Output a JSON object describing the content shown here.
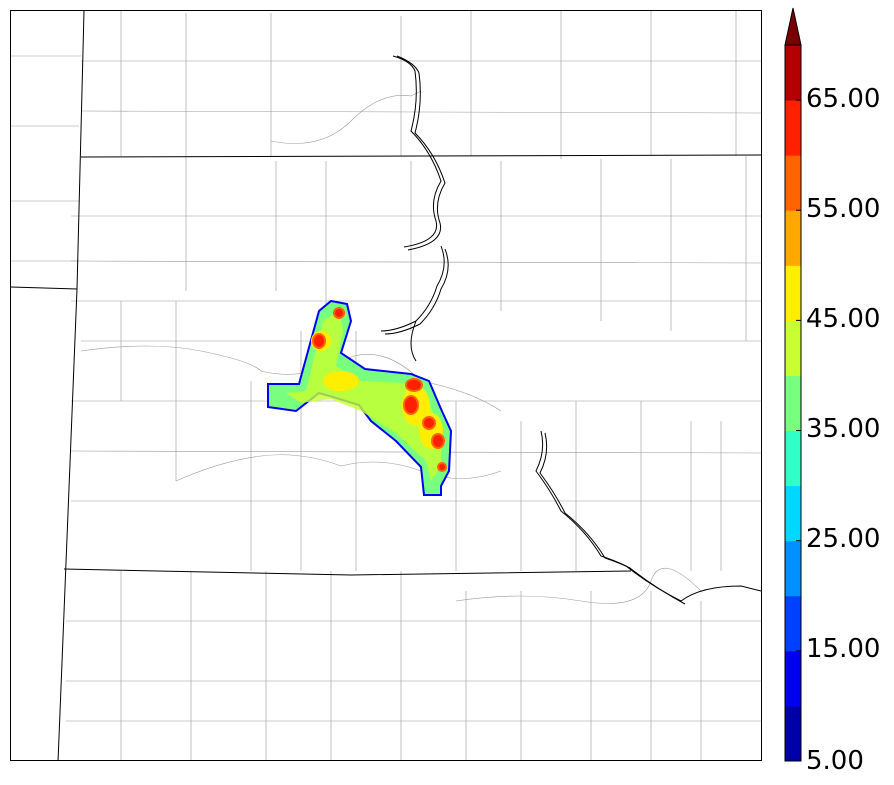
{
  "colorbar": {
    "tick_labels": [
      "5.00",
      "15.00",
      "25.00",
      "35.00",
      "45.00",
      "55.00",
      "65.00"
    ],
    "ticks": [
      5,
      15,
      25,
      35,
      45,
      55,
      65
    ],
    "min": 5,
    "max": 70,
    "extend": "max",
    "levels": [
      5,
      10,
      15,
      20,
      25,
      30,
      35,
      40,
      45,
      50,
      55,
      60,
      65,
      70
    ],
    "colors": [
      "#0000a8",
      "#0000f0",
      "#0040ff",
      "#0090ff",
      "#00d8ff",
      "#30ffc8",
      "#78ff80",
      "#c8ff30",
      "#ffee00",
      "#ffa800",
      "#ff6400",
      "#ff2000",
      "#b40000"
    ],
    "extend_color": "#7a0000"
  },
  "field": {
    "fill_colors": {
      "outline": "#0000ff",
      "base": "#78ff80",
      "mid": "#c8ff30",
      "high": "#ffee00",
      "peak": "#ff6400",
      "max": "#ff2000"
    }
  }
}
